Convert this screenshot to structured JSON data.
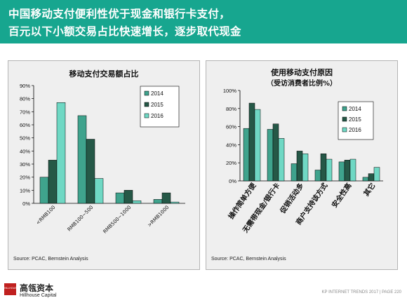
{
  "header": {
    "title_line1": "中国移动支付便利性优于现金和银行卡支付，",
    "title_line2": "百元以下小额交易占比快速增长，逐步取代现金"
  },
  "colors": {
    "header_bg": "#17a68f",
    "series_2014": "#3fa38d",
    "series_2015": "#255847",
    "series_2016": "#6fd8c4"
  },
  "chart_data": [
    {
      "type": "bar",
      "title": "移动支付交易额占比",
      "categories": [
        "<RMB100",
        "RMB100~500",
        "RMB500~1000",
        ">RMB1000"
      ],
      "series": [
        {
          "name": "2014",
          "values": [
            20,
            67,
            8,
            3
          ]
        },
        {
          "name": "2015",
          "values": [
            33,
            49,
            10,
            8
          ]
        },
        {
          "name": "2016",
          "values": [
            77,
            19,
            2,
            1
          ]
        }
      ],
      "ylim": [
        0,
        90
      ],
      "yticks": [
        "0%",
        "10%",
        "20%",
        "30%",
        "40%",
        "50%",
        "60%",
        "70%",
        "80%",
        "90%"
      ],
      "legend_position": "top-right",
      "source": "Source: PCAC, Bernstein Analysis"
    },
    {
      "type": "bar",
      "title": "使用移动支付原因",
      "subtitle": "（受访消费者比例%）",
      "categories": [
        "操作简单方便",
        "无需带现金/银行卡",
        "促销活动多",
        "商户支持该方式",
        "安全性高",
        "其它"
      ],
      "series": [
        {
          "name": "2014",
          "values": [
            58,
            57,
            19,
            12,
            21,
            4
          ]
        },
        {
          "name": "2015",
          "values": [
            86,
            63,
            33,
            30,
            23,
            8
          ]
        },
        {
          "name": "2016",
          "values": [
            79,
            47,
            30,
            24,
            24,
            15
          ]
        }
      ],
      "ylim": [
        0,
        100
      ],
      "yticks": [
        "0%",
        "20%",
        "40%",
        "60%",
        "80%",
        "100%"
      ],
      "legend_position": "top-right",
      "source": "Source: PCAC, Bernstein Analysis"
    }
  ],
  "footer": {
    "logo_text": "HILLHOUSE",
    "brand_cn": "高瓴资本",
    "brand_en": "Hillhouse Capital",
    "right_text": "KP INTERNET TRENDS 2017  |  PAGE 220"
  }
}
